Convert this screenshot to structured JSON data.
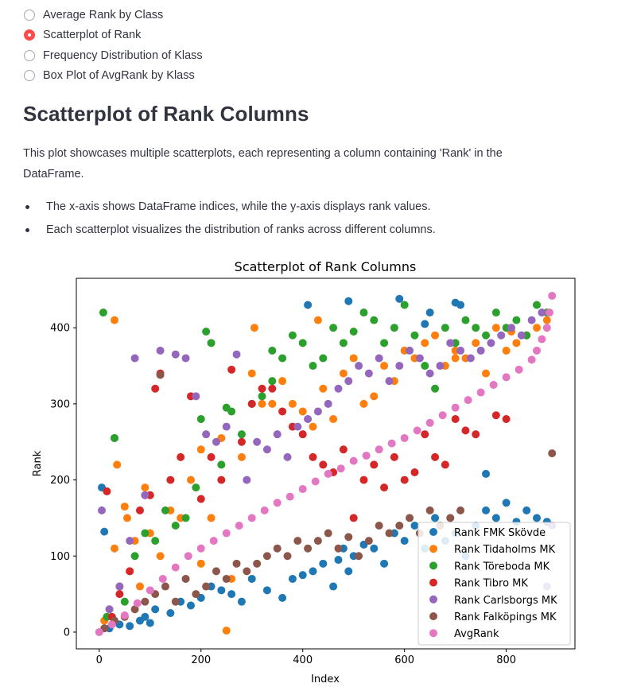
{
  "radio": {
    "options": [
      {
        "label": "Average Rank by Class",
        "selected": false
      },
      {
        "label": "Scatterplot of Rank",
        "selected": true
      },
      {
        "label": "Frequency Distribution of Klass",
        "selected": false
      },
      {
        "label": "Box Plot of AvgRank by Klass",
        "selected": false
      }
    ],
    "accent_color": "#ff4b4b"
  },
  "page": {
    "title": "Scatterplot of Rank Columns",
    "description": "This plot showcases multiple scatterplots, each representing a column containing 'Rank' in the DataFrame.",
    "bullets": [
      "The x-axis shows DataFrame indices, while the y-axis displays rank values.",
      "Each scatterplot visualizes the distribution of ranks across different columns."
    ]
  },
  "chart_data": {
    "type": "scatter",
    "title": "Scatterplot of Rank Columns",
    "xlabel": "Index",
    "ylabel": "Rank",
    "xlim": [
      -45,
      935
    ],
    "ylim": [
      -22,
      465
    ],
    "xticks": [
      0,
      200,
      400,
      600,
      800
    ],
    "yticks": [
      0,
      100,
      200,
      300,
      400
    ],
    "grid": false,
    "legend_position": "lower-right",
    "series": [
      {
        "name": "Rank FMK Skövde",
        "color": "#1f77b4",
        "x": [
          5,
          10,
          20,
          40,
          60,
          80,
          90,
          100,
          110,
          140,
          160,
          180,
          200,
          220,
          240,
          260,
          280,
          300,
          330,
          360,
          380,
          400,
          420,
          440,
          460,
          470,
          480,
          490,
          500,
          520,
          540,
          560,
          580,
          600,
          620,
          640,
          660,
          680,
          700,
          720,
          740,
          760,
          780,
          800,
          820,
          840,
          860,
          880,
          410,
          490,
          590,
          640,
          700,
          710,
          760,
          650
        ],
        "y": [
          190,
          132,
          5,
          10,
          8,
          15,
          20,
          12,
          30,
          25,
          40,
          35,
          45,
          60,
          55,
          50,
          40,
          70,
          55,
          45,
          70,
          75,
          80,
          90,
          60,
          95,
          110,
          80,
          100,
          115,
          110,
          90,
          130,
          120,
          140,
          110,
          150,
          120,
          130,
          100,
          140,
          160,
          150,
          170,
          145,
          160,
          150,
          145,
          430,
          435,
          438,
          405,
          433,
          430,
          208,
          420
        ]
      },
      {
        "name": "Rank Tidaholms MK",
        "color": "#ff7f0e",
        "x": [
          10,
          20,
          30,
          40,
          50,
          60,
          70,
          80,
          90,
          100,
          120,
          140,
          160,
          180,
          200,
          220,
          240,
          250,
          260,
          280,
          300,
          320,
          340,
          360,
          380,
          400,
          420,
          440,
          460,
          480,
          500,
          520,
          540,
          560,
          580,
          600,
          620,
          640,
          660,
          680,
          700,
          720,
          740,
          760,
          780,
          800,
          820,
          840,
          860,
          880,
          30,
          35,
          55,
          90,
          200,
          305,
          430,
          700,
          810
        ],
        "y": [
          15,
          30,
          110,
          60,
          165,
          80,
          120,
          60,
          190,
          130,
          100,
          160,
          150,
          200,
          90,
          150,
          255,
          2,
          70,
          230,
          340,
          300,
          300,
          330,
          300,
          290,
          270,
          320,
          280,
          340,
          360,
          300,
          310,
          350,
          330,
          370,
          360,
          380,
          390,
          350,
          370,
          360,
          380,
          340,
          400,
          370,
          380,
          390,
          400,
          410,
          410,
          220,
          150,
          180,
          240,
          400,
          410,
          360,
          395
        ]
      },
      {
        "name": "Rank Töreboda MK",
        "color": "#2ca02c",
        "x": [
          8,
          15,
          30,
          50,
          70,
          90,
          110,
          130,
          150,
          170,
          190,
          210,
          220,
          240,
          260,
          280,
          300,
          320,
          340,
          360,
          380,
          400,
          420,
          440,
          460,
          480,
          500,
          520,
          540,
          560,
          580,
          600,
          620,
          640,
          660,
          680,
          700,
          720,
          740,
          760,
          780,
          800,
          820,
          840,
          860,
          880,
          30,
          200,
          250,
          340
        ],
        "y": [
          420,
          20,
          255,
          40,
          100,
          130,
          120,
          160,
          140,
          150,
          190,
          395,
          380,
          220,
          290,
          260,
          300,
          310,
          330,
          360,
          390,
          380,
          350,
          360,
          400,
          380,
          395,
          420,
          410,
          380,
          400,
          430,
          390,
          350,
          320,
          400,
          380,
          410,
          400,
          390,
          420,
          400,
          410,
          390,
          430,
          420,
          255,
          280,
          295,
          370
        ]
      },
      {
        "name": "Rank Tibro MK",
        "color": "#d62728",
        "x": [
          15,
          25,
          40,
          60,
          80,
          100,
          110,
          120,
          140,
          160,
          180,
          200,
          220,
          240,
          260,
          280,
          300,
          320,
          340,
          360,
          380,
          400,
          420,
          440,
          460,
          480,
          500,
          520,
          540,
          560,
          580,
          600,
          620,
          640,
          660,
          680,
          700,
          720,
          740,
          780,
          800
        ],
        "y": [
          185,
          20,
          50,
          80,
          160,
          180,
          320,
          340,
          200,
          230,
          310,
          175,
          230,
          200,
          345,
          250,
          300,
          320,
          320,
          290,
          270,
          260,
          230,
          220,
          210,
          240,
          150,
          200,
          220,
          190,
          230,
          200,
          210,
          260,
          230,
          220,
          280,
          265,
          260,
          285,
          280
        ]
      },
      {
        "name": "Rank Carlsborgs MK",
        "color": "#9467bd",
        "x": [
          5,
          20,
          40,
          60,
          70,
          90,
          120,
          150,
          170,
          190,
          210,
          230,
          250,
          270,
          290,
          310,
          330,
          350,
          370,
          390,
          410,
          430,
          450,
          470,
          490,
          510,
          530,
          550,
          570,
          590,
          610,
          630,
          650,
          670,
          690,
          710,
          730,
          750,
          770,
          790,
          810,
          830,
          850,
          870,
          890,
          880
        ],
        "y": [
          160,
          30,
          60,
          120,
          360,
          180,
          370,
          365,
          360,
          310,
          260,
          250,
          270,
          365,
          200,
          250,
          240,
          260,
          230,
          270,
          280,
          290,
          300,
          320,
          330,
          350,
          340,
          360,
          330,
          350,
          370,
          360,
          340,
          350,
          380,
          370,
          360,
          370,
          380,
          390,
          400,
          390,
          410,
          420,
          140,
          60
        ]
      },
      {
        "name": "Rank Falköpings MK",
        "color": "#8c564b",
        "x": [
          10,
          30,
          50,
          70,
          90,
          110,
          130,
          150,
          170,
          190,
          210,
          230,
          250,
          270,
          290,
          310,
          330,
          350,
          370,
          390,
          410,
          430,
          450,
          470,
          490,
          510,
          530,
          550,
          570,
          590,
          610,
          630,
          650,
          670,
          690,
          710,
          120,
          890
        ],
        "y": [
          5,
          15,
          20,
          30,
          40,
          50,
          60,
          40,
          70,
          50,
          60,
          80,
          70,
          90,
          80,
          90,
          100,
          110,
          100,
          120,
          110,
          120,
          130,
          110,
          125,
          100,
          120,
          140,
          130,
          140,
          150,
          130,
          160,
          140,
          150,
          160,
          338,
          235
        ]
      },
      {
        "name": "AvgRank",
        "color": "#e377c2",
        "x": [
          0,
          25,
          50,
          75,
          100,
          125,
          150,
          175,
          200,
          225,
          250,
          275,
          300,
          325,
          350,
          375,
          400,
          425,
          450,
          475,
          500,
          525,
          550,
          575,
          600,
          625,
          650,
          675,
          700,
          725,
          750,
          775,
          800,
          825,
          850,
          860,
          870,
          880,
          885,
          890
        ],
        "y": [
          0,
          10,
          22,
          38,
          55,
          70,
          85,
          100,
          110,
          120,
          130,
          140,
          150,
          160,
          170,
          178,
          188,
          198,
          208,
          215,
          225,
          232,
          240,
          248,
          255,
          265,
          275,
          285,
          295,
          305,
          315,
          325,
          335,
          345,
          358,
          370,
          385,
          400,
          420,
          442
        ]
      }
    ]
  }
}
